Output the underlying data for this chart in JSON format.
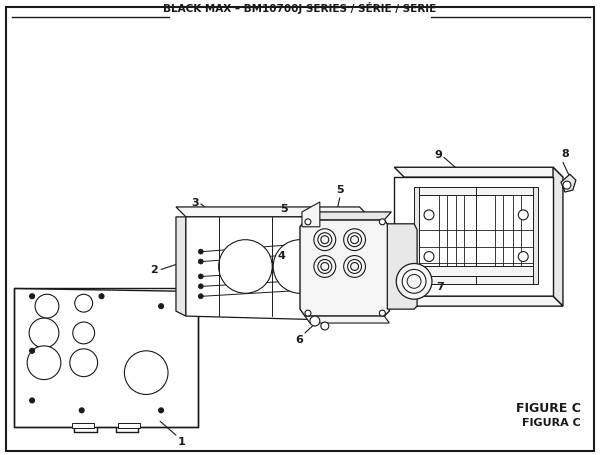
{
  "title": "BLACK MAX – BM10700J SERIES / SÉRIE / SERIE",
  "figure_label": "FIGURE C",
  "figura_label": "FIGURA C",
  "bg_color": "#ffffff",
  "line_color": "#1a1a1a",
  "light_fill": "#f5f5f5",
  "mid_fill": "#e8e8e8",
  "dark_fill": "#d0d0d0"
}
